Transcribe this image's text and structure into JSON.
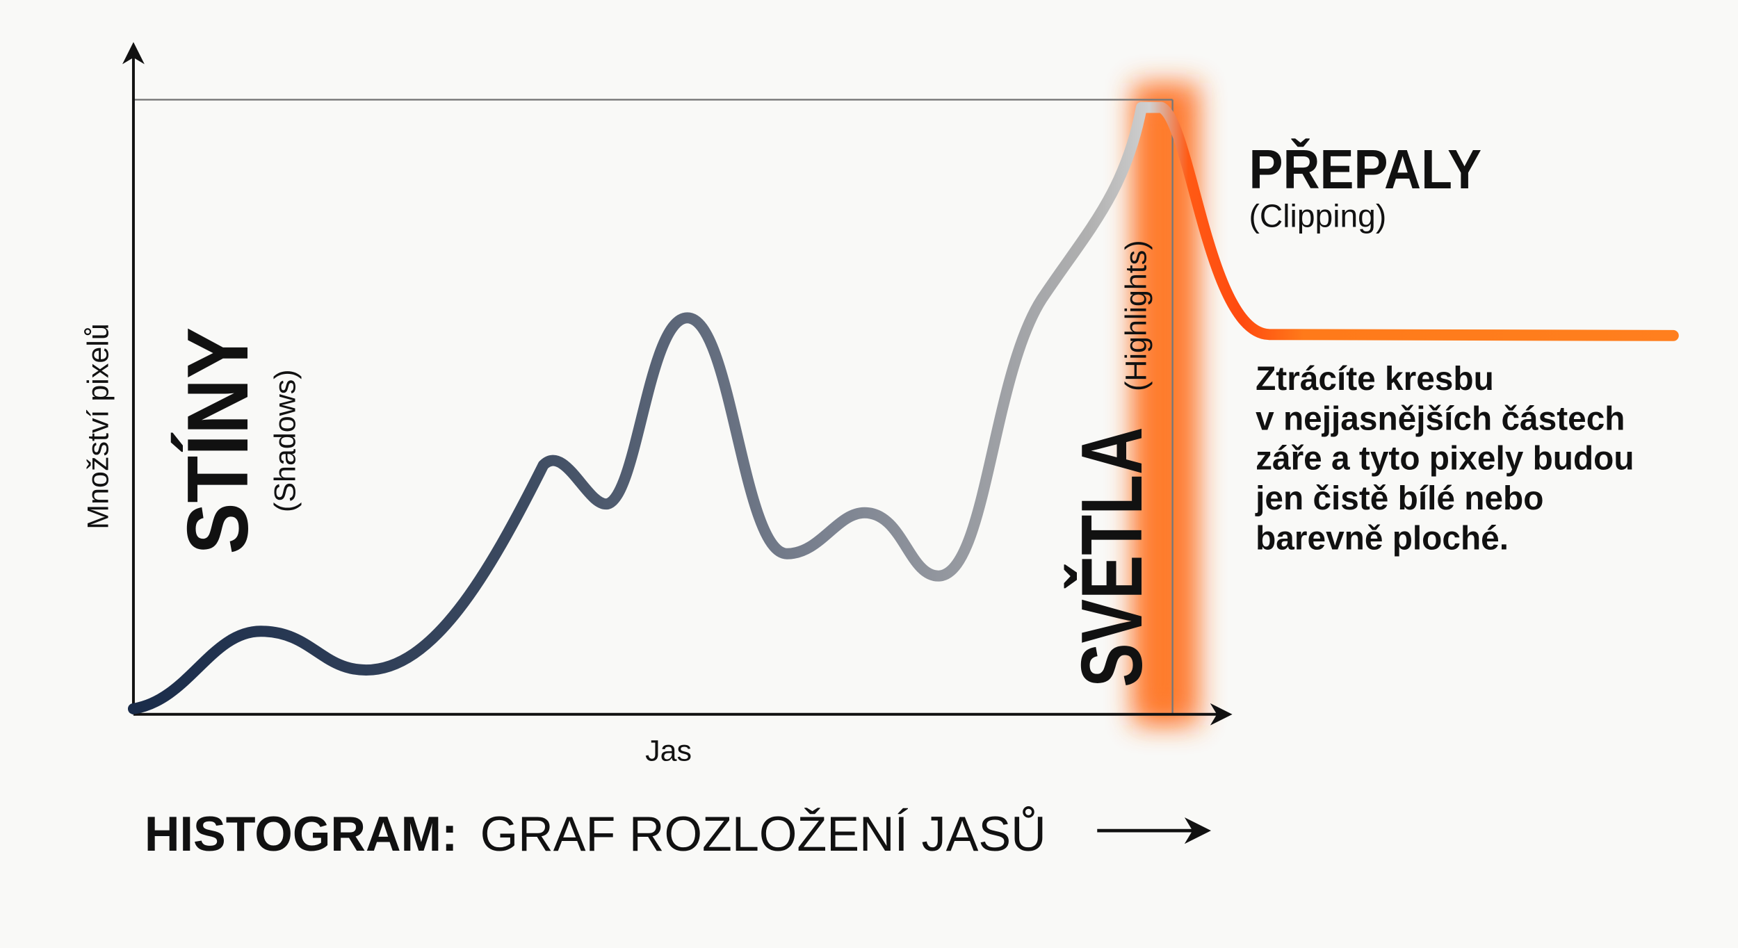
{
  "axes": {
    "y_label": "Množství pixelů",
    "x_label": "Jas"
  },
  "title": {
    "bold": "HISTOGRAM:",
    "rest": "GRAF ROZLOŽENÍ JASŮ"
  },
  "zones": {
    "shadows": {
      "label": "STÍNY",
      "sub": "(Shadows)"
    },
    "highlights": {
      "label": "SVĚTLA",
      "sub": "(Highlights)"
    },
    "clipping": {
      "label": "PŘEPALY",
      "sub": "(Clipping)",
      "description": [
        "Ztrácíte kresbu",
        "v nejjasnějších částech",
        "záře a tyto pixely budou",
        "jen čistě bílé nebo",
        "barevně ploché."
      ]
    }
  }
}
